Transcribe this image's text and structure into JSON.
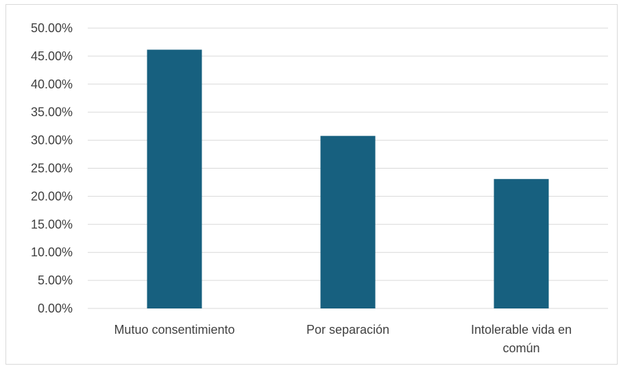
{
  "chart_data": {
    "type": "bar",
    "categories": [
      [
        "Mutuo consentimiento"
      ],
      [
        "Por separación"
      ],
      [
        "Intolerable vida en",
        "común"
      ]
    ],
    "values": [
      46.15,
      30.77,
      23.08
    ],
    "ylim": [
      0,
      50
    ],
    "yticks": [
      "0.00%",
      "5.00%",
      "10.00%",
      "15.00%",
      "20.00%",
      "25.00%",
      "30.00%",
      "35.00%",
      "40.00%",
      "45.00%",
      "50.00%"
    ],
    "ytick_values": [
      0,
      5,
      10,
      15,
      20,
      25,
      30,
      35,
      40,
      45,
      50
    ],
    "grid": true,
    "legend": "none",
    "colors": {
      "bar": "#17607f",
      "grid": "#d9d9d9",
      "text": "#404040"
    }
  }
}
